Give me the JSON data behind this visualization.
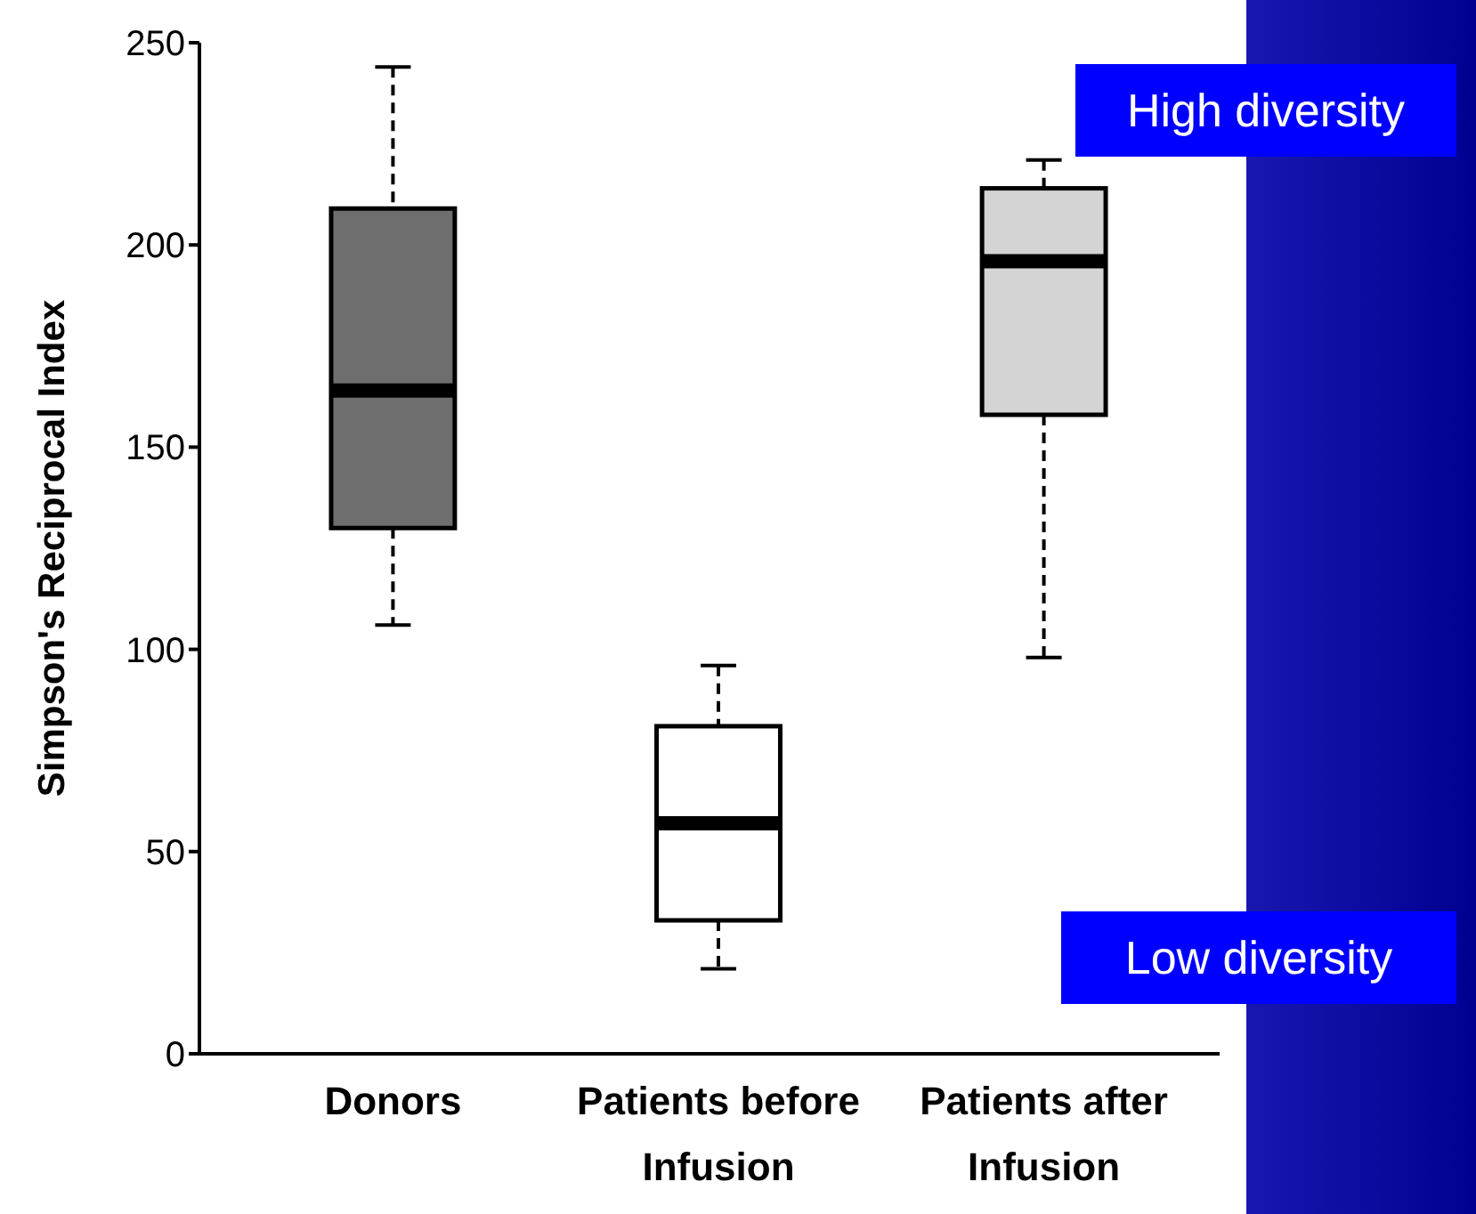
{
  "chart_data": {
    "type": "box",
    "ylabel": "Simpson's Reciprocal Index",
    "categories": [
      "Donors",
      "Patients before Infusion",
      "Patients after Infusion"
    ],
    "colors": [
      "#6e6e6e",
      "#ffffff",
      "#d4d4d4"
    ],
    "boxes": [
      {
        "low": 106,
        "q1": 130,
        "median": 164,
        "q3": 209,
        "high": 244
      },
      {
        "low": 21,
        "q1": 33,
        "median": 57,
        "q3": 81,
        "high": 96
      },
      {
        "low": 98,
        "q1": 158,
        "median": 196,
        "q3": 214,
        "high": 221
      }
    ],
    "ylim": [
      0,
      250
    ],
    "yticks": [
      0,
      50,
      100,
      150,
      200,
      250
    ],
    "grid": false,
    "annotations": [
      "High diversity",
      "Low diversity"
    ]
  }
}
